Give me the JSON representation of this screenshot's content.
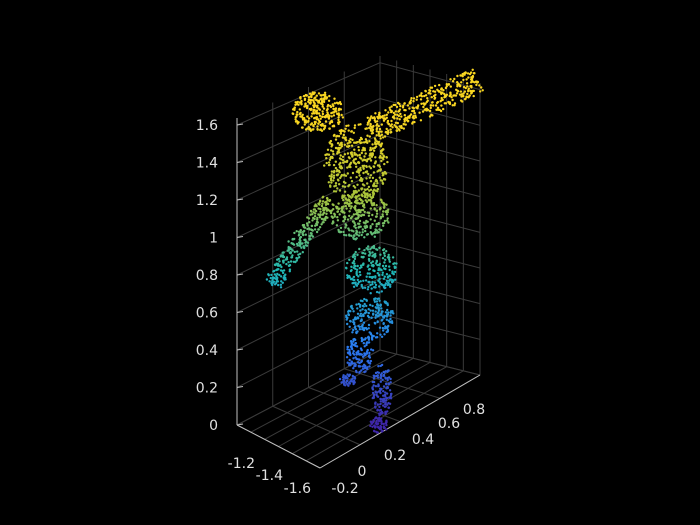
{
  "chart_data": {
    "type": "scatter",
    "dimensions": 3,
    "description_note": "",
    "title": "",
    "xlabel": "",
    "ylabel": "",
    "zlabel": "",
    "grid": true,
    "background": "#000000",
    "colormap": "parula",
    "color_by": "z",
    "axes": {
      "x": {
        "ticks": [
          -1.2,
          -1.4,
          -1.6
        ],
        "tick_labels": [
          "-1.2",
          "-1.4",
          "-1.6"
        ]
      },
      "y": {
        "ticks": [
          -0.2,
          0,
          0.2,
          0.4,
          0.6,
          0.8
        ],
        "tick_labels": [
          "-0.2",
          "0",
          "0.2",
          "0.4",
          "0.6",
          "0.8"
        ]
      },
      "z": {
        "ticks": [
          0,
          0.2,
          0.4,
          0.6,
          0.8,
          1,
          1.2,
          1.4,
          1.6
        ],
        "tick_labels": [
          "0",
          "0.2",
          "0.4",
          "0.6",
          "0.8",
          "1",
          "1.2",
          "1.4",
          "1.6"
        ],
        "range": [
          0,
          1.65
        ]
      }
    },
    "colors": {
      "low": "#3e26a8",
      "mid_low": "#2a7cf2",
      "mid": "#1fb7b4",
      "mid_high": "#a8c33a",
      "high": "#f9d621",
      "axis_text": "#e0e0e0",
      "grid": "#3a3a3a"
    }
  }
}
